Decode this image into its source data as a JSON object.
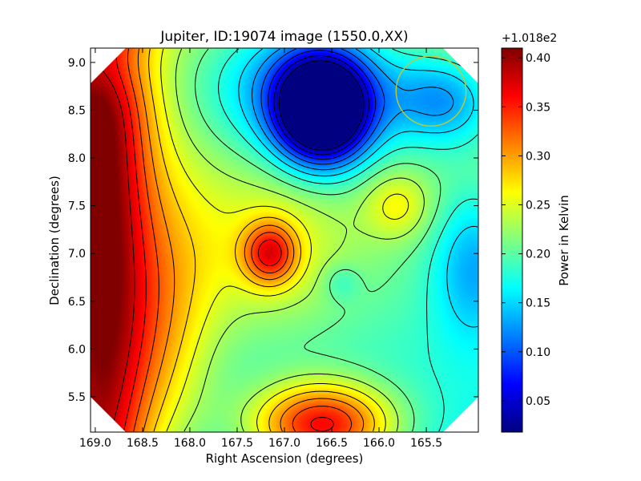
{
  "chart_data": {
    "type": "heatmap",
    "title": "Jupiter, ID:19074 image (1550.0,XX)",
    "xlabel": "Right Ascension (degrees)",
    "ylabel": "Declination (degrees)",
    "xlim": [
      169.05,
      164.95
    ],
    "ylim": [
      5.13,
      9.15
    ],
    "x_ticks": [
      {
        "value": 169.0,
        "label": "169.0"
      },
      {
        "value": 168.5,
        "label": "168.5"
      },
      {
        "value": 168.0,
        "label": "168.0"
      },
      {
        "value": 167.5,
        "label": "167.5"
      },
      {
        "value": 167.0,
        "label": "167.0"
      },
      {
        "value": 166.5,
        "label": "166.5"
      },
      {
        "value": 166.0,
        "label": "166.0"
      },
      {
        "value": 165.5,
        "label": "165.5"
      }
    ],
    "y_ticks": [
      {
        "value": 5.5,
        "label": "5.5"
      },
      {
        "value": 6.0,
        "label": "6.0"
      },
      {
        "value": 6.5,
        "label": "6.5"
      },
      {
        "value": 7.0,
        "label": "7.0"
      },
      {
        "value": 7.5,
        "label": "7.5"
      },
      {
        "value": 8.0,
        "label": "8.0"
      },
      {
        "value": 8.5,
        "label": "8.5"
      },
      {
        "value": 9.0,
        "label": "9.0"
      }
    ],
    "colorbar": {
      "label": "Power in Kelvin",
      "offset_label": "+1.018e2",
      "colormap": "jet",
      "range": [
        0.018,
        0.41
      ],
      "ticks": [
        {
          "value": 0.05,
          "label": "0.05"
        },
        {
          "value": 0.1,
          "label": "0.10"
        },
        {
          "value": 0.15,
          "label": "0.15"
        },
        {
          "value": 0.2,
          "label": "0.20"
        },
        {
          "value": 0.25,
          "label": "0.25"
        },
        {
          "value": 0.3,
          "label": "0.30"
        },
        {
          "value": 0.35,
          "label": "0.35"
        },
        {
          "value": 0.4,
          "label": "0.40"
        }
      ]
    },
    "features": [
      {
        "name": "western band maximum",
        "ra": 169.0,
        "dec": 7.0,
        "value": 0.4
      },
      {
        "name": "central peak",
        "ra": 167.15,
        "dec": 7.0,
        "value": 0.4
      },
      {
        "name": "southern peak",
        "ra": 166.6,
        "dec": 5.2,
        "value": 0.4
      },
      {
        "name": "northern minimum",
        "ra": 166.6,
        "dec": 8.5,
        "value": 0.02
      },
      {
        "name": "eastern low",
        "ra": 165.0,
        "dec": 6.9,
        "value": 0.18
      },
      {
        "name": "local high",
        "ra": 165.8,
        "dec": 7.5,
        "value": 0.27
      },
      {
        "name": "local low",
        "ra": 166.4,
        "dec": 6.7,
        "value": 0.18
      }
    ],
    "beam_circle": {
      "ra": 165.45,
      "dec": 8.7,
      "radius_deg": 0.37,
      "color": "#c8c832"
    },
    "contour_color": "#000000",
    "grid": false
  }
}
